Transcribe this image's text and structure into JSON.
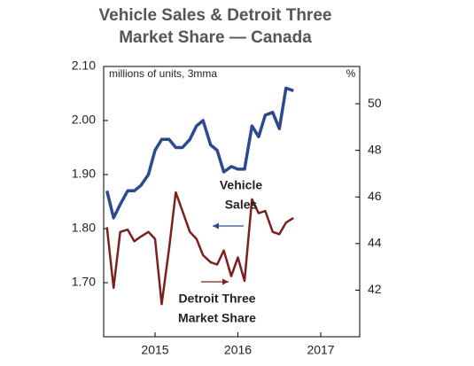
{
  "chart_data": {
    "type": "line",
    "title_lines": [
      "Vehicle Sales & Detroit Three",
      "Market Share — Canada"
    ],
    "y_label": "millions of units, 3mma",
    "y2_label": "%",
    "x": [
      2014.42,
      2014.5,
      2014.58,
      2014.67,
      2014.75,
      2014.83,
      2014.92,
      2015,
      2015.08,
      2015.17,
      2015.25,
      2015.33,
      2015.42,
      2015.5,
      2015.58,
      2015.67,
      2015.75,
      2015.83,
      2015.92,
      2016,
      2016.08,
      2016.17,
      2016.25,
      2016.33,
      2016.42,
      2016.5,
      2016.58,
      2016.67
    ],
    "series": [
      {
        "name": "Vehicle Sales",
        "color": "#2e4a8f",
        "axis": "y",
        "label_lines": [
          "Vehicle",
          "Sales"
        ],
        "values": [
          1.87,
          1.82,
          1.845,
          1.87,
          1.87,
          1.88,
          1.9,
          1.945,
          1.965,
          1.965,
          1.95,
          1.95,
          1.965,
          1.99,
          2.0,
          1.955,
          1.945,
          1.905,
          1.915,
          1.91,
          1.91,
          1.99,
          1.97,
          2.01,
          2.015,
          1.985,
          2.06,
          2.055
        ]
      },
      {
        "name": "Detroit Three Market Share",
        "color": "#7a2020",
        "axis": "y2",
        "label_lines": [
          "Detroit Three",
          "Market Share"
        ],
        "values": [
          44.7,
          42.1,
          44.5,
          44.6,
          44.1,
          44.3,
          44.5,
          44.2,
          41.4,
          43.8,
          46.2,
          45.4,
          44.5,
          44.2,
          43.5,
          43.2,
          43.1,
          43.7,
          42.6,
          43.4,
          42.4,
          45.9,
          45.3,
          45.4,
          44.5,
          44.4,
          44.9,
          45.1
        ]
      }
    ],
    "xlim": [
      2014.38,
      2017.47
    ],
    "xticks": [
      2015,
      2016,
      2017
    ],
    "ylim": [
      1.6,
      2.1
    ],
    "yticks": [
      {
        "value": 1.7,
        "label": "1.70"
      },
      {
        "value": 1.8,
        "label": "1.80"
      },
      {
        "value": 1.9,
        "label": "1.90"
      },
      {
        "value": 2.0,
        "label": "2.00"
      },
      {
        "value": 2.1,
        "label": "2.10"
      }
    ],
    "y2lim": [
      40,
      51.6
    ],
    "y2ticks": [
      42,
      44,
      46,
      48,
      50
    ]
  }
}
